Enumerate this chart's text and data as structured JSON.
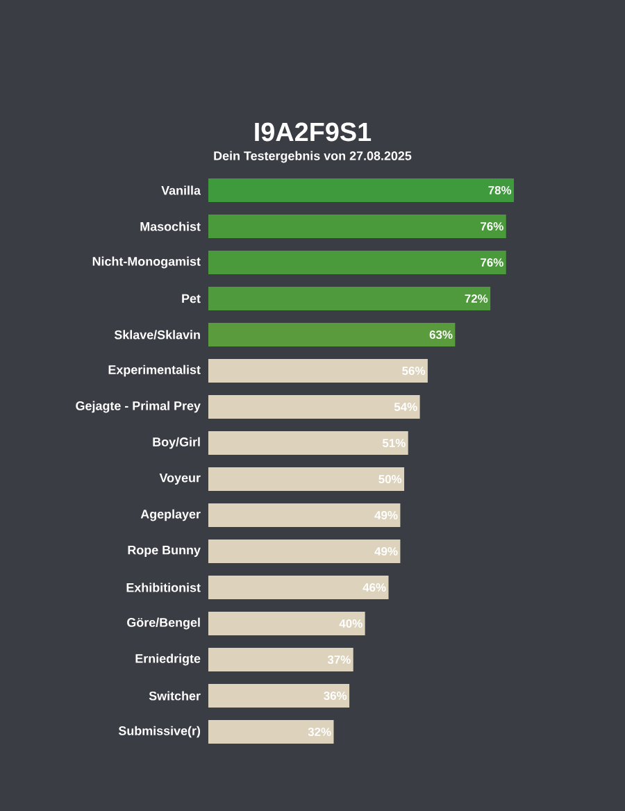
{
  "chart_data": {
    "type": "bar",
    "orientation": "horizontal",
    "title": "I9A2F9S1",
    "subtitle": "Dein Testergebnis von 27.08.2025",
    "categories": [
      "Vanilla",
      "Masochist",
      "Nicht-Monogamist",
      "Pet",
      "Sklave/Sklavin",
      "Experimentalist",
      "Gejagte - Primal Prey",
      "Boy/Girl",
      "Voyeur",
      "Ageplayer",
      "Rope Bunny",
      "Exhibitionist",
      "Göre/Bengel",
      "Erniedrigte",
      "Switcher",
      "Submissive(r)"
    ],
    "values": [
      78,
      76,
      76,
      72,
      63,
      56,
      54,
      51,
      50,
      49,
      49,
      46,
      40,
      37,
      36,
      32
    ],
    "value_labels": [
      "78%",
      "76%",
      "76%",
      "72%",
      "63%",
      "56%",
      "54%",
      "51%",
      "50%",
      "49%",
      "49%",
      "46%",
      "40%",
      "37%",
      "36%",
      "32%"
    ],
    "colors": [
      "#3f9a3e",
      "#4a9a3c",
      "#4a9a3c",
      "#4f9a3c",
      "#5a9b3e",
      "#ddd3bd",
      "#ddd3bd",
      "#ddd3bd",
      "#ddd3bd",
      "#ddd3bd",
      "#ddd3bd",
      "#ddd3bd",
      "#ddd3bd",
      "#ddd3bd",
      "#ddd3bd",
      "#ddd3bd"
    ],
    "tick_labels": "y"
  }
}
